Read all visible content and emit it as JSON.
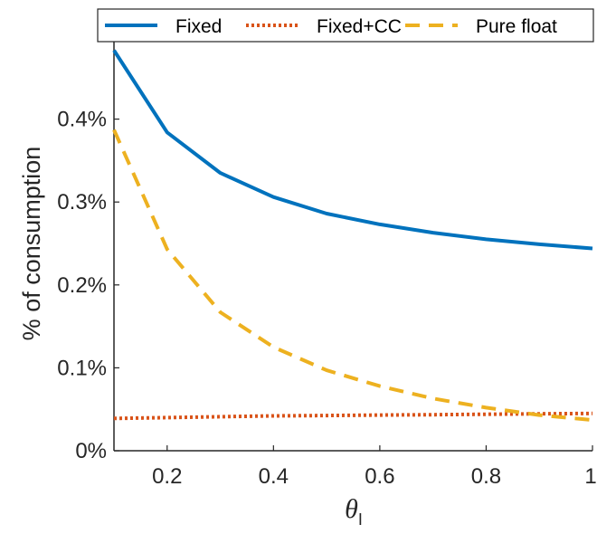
{
  "chart_data": {
    "type": "line",
    "title": "",
    "xlabel": "θ",
    "xlabel_subscript": "I",
    "ylabel": "% of consumption",
    "xlim": [
      0.1,
      1.0
    ],
    "ylim": [
      0,
      0.5
    ],
    "x_ticks": [
      0.2,
      0.4,
      0.6,
      0.8,
      1.0
    ],
    "x_tick_labels": [
      "0.2",
      "0.4",
      "0.6",
      "0.8",
      "1"
    ],
    "y_ticks": [
      0,
      0.1,
      0.2,
      0.3,
      0.4
    ],
    "y_tick_labels": [
      "0%",
      "0.1%",
      "0.2%",
      "0.3%",
      "0.4%"
    ],
    "grid": false,
    "legend_position": "top",
    "x": [
      0.1,
      0.2,
      0.3,
      0.4,
      0.5,
      0.6,
      0.7,
      0.8,
      0.9,
      1.0
    ],
    "series": [
      {
        "name": "Fixed",
        "color": "#0072BD",
        "line_style": "solid",
        "values": [
          0.483,
          0.384,
          0.335,
          0.306,
          0.286,
          0.273,
          0.263,
          0.255,
          0.249,
          0.244
        ]
      },
      {
        "name": "Fixed+CC",
        "color": "#D95319",
        "line_style": "dotted",
        "values": [
          0.039,
          0.04,
          0.041,
          0.042,
          0.0425,
          0.043,
          0.0435,
          0.044,
          0.0445,
          0.045
        ]
      },
      {
        "name": "Pure float",
        "color": "#EDB120",
        "line_style": "dashed",
        "values": [
          0.387,
          0.243,
          0.167,
          0.125,
          0.097,
          0.078,
          0.063,
          0.052,
          0.043,
          0.037
        ]
      }
    ]
  }
}
